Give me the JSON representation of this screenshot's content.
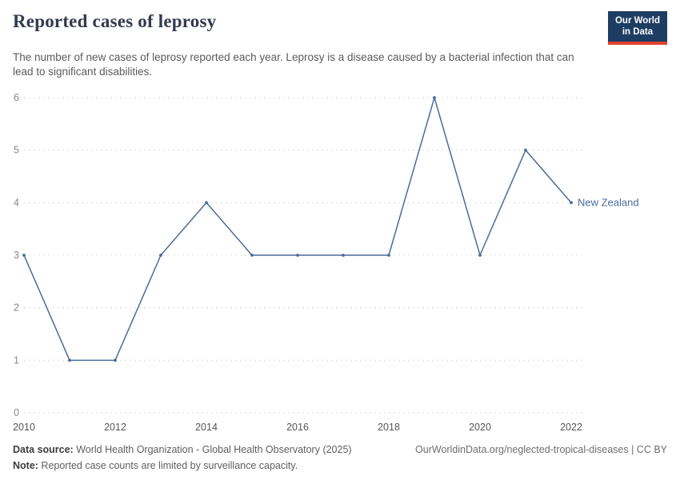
{
  "header": {
    "title": "Reported cases of leprosy",
    "subtitle": "The number of new cases of leprosy reported each year. Leprosy is a disease caused by a bacterial infection that can lead to significant disabilities.",
    "logo": {
      "line1": "Our World",
      "line2": "in Data"
    }
  },
  "colors": {
    "line": "#4C6A9C",
    "grid": "#dcdcdc",
    "logo_bg": "#1d3d63",
    "logo_accent": "#e0422d",
    "title_text": "#323a4d",
    "subtitle_text": "#5b5b5b"
  },
  "chart_data": {
    "type": "line",
    "title": "Reported cases of leprosy",
    "xlabel": "",
    "ylabel": "",
    "xlim": [
      2010,
      2022
    ],
    "ylim": [
      0,
      6
    ],
    "grid": true,
    "legend_position": "line-end-label",
    "x_ticks": [
      2010,
      2012,
      2014,
      2016,
      2018,
      2020,
      2022
    ],
    "y_ticks": [
      0,
      1,
      2,
      3,
      4,
      5,
      6
    ],
    "grid_color": "#dcdcdc",
    "series": [
      {
        "name": "New Zealand",
        "color": "#4C6A9C",
        "x": [
          2010,
          2011,
          2012,
          2013,
          2014,
          2015,
          2016,
          2017,
          2018,
          2019,
          2020,
          2021,
          2022
        ],
        "values": [
          3,
          1,
          1,
          3,
          4,
          3,
          3,
          3,
          3,
          6,
          3,
          5,
          4
        ]
      }
    ]
  },
  "footer": {
    "datasource_label": "Data source:",
    "datasource_text": " World Health Organization - Global Health Observatory (2025)",
    "right_text": "OurWorldinData.org/neglected-tropical-diseases | CC BY",
    "note_label": "Note:",
    "note_text": " Reported case counts are limited by surveillance capacity."
  }
}
